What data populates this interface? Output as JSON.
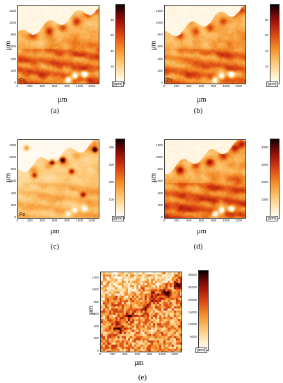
{
  "chart_data": [
    {
      "type": "heatmap",
      "panel": "(a)",
      "element": "Cu",
      "xlabel": "µm",
      "ylabel": "µm",
      "x_ticks": [
        "0",
        "200",
        "400",
        "600",
        "800",
        "1000",
        "1200"
      ],
      "y_ticks": [
        "0",
        "200",
        "400",
        "600",
        "800",
        "1000",
        "1200"
      ],
      "xlim": [
        0,
        1300
      ],
      "ylim": [
        0,
        1300
      ],
      "colorbar": {
        "ticks": [
          "20",
          "40",
          "60",
          "80"
        ],
        "unit": "[ppm]",
        "range": [
          0,
          100
        ]
      }
    },
    {
      "type": "heatmap",
      "panel": "(b)",
      "element": "Zn",
      "xlabel": "µm",
      "ylabel": "µm",
      "x_ticks": [
        "0",
        "200",
        "400",
        "600",
        "800",
        "1000",
        "1200"
      ],
      "y_ticks": [
        "0",
        "200",
        "400",
        "600",
        "800",
        "1000",
        "1200"
      ],
      "xlim": [
        0,
        1300
      ],
      "ylim": [
        0,
        1300
      ],
      "colorbar": {
        "ticks": [
          "20",
          "40",
          "60",
          "80"
        ],
        "unit": "[ppm]",
        "range": [
          0,
          100
        ]
      }
    },
    {
      "type": "heatmap",
      "panel": "(c)",
      "element": "Fe",
      "xlabel": "µm",
      "ylabel": "µm",
      "x_ticks": [
        "0",
        "200",
        "400",
        "600",
        "800",
        "1000",
        "1200"
      ],
      "y_ticks": [
        "0",
        "200",
        "400",
        "600",
        "800",
        "1000",
        "1200"
      ],
      "xlim": [
        0,
        1300
      ],
      "ylim": [
        0,
        1300
      ],
      "colorbar": {
        "ticks": [
          "100",
          "200",
          "300",
          "400"
        ],
        "unit": "[ppm]",
        "range": [
          0,
          450
        ]
      }
    },
    {
      "type": "heatmap",
      "panel": "(d)",
      "element": "",
      "xlabel": "µm",
      "ylabel": "µm",
      "x_ticks": [
        "0",
        "200",
        "400",
        "600",
        "800",
        "1000",
        "1200"
      ],
      "y_ticks": [
        "0",
        "200",
        "400",
        "600",
        "800",
        "1000",
        "1200"
      ],
      "xlim": [
        0,
        1300
      ],
      "ylim": [
        0,
        1300
      ],
      "colorbar": {
        "ticks": [
          "1000",
          "2000",
          "3000",
          "4000"
        ],
        "unit": "[ppm]",
        "range": [
          0,
          4500
        ]
      }
    },
    {
      "type": "heatmap",
      "panel": "(e)",
      "element": "",
      "xlabel": "µm",
      "ylabel": "µm",
      "x_ticks": [
        "0",
        "200",
        "400",
        "600",
        "800",
        "1000",
        "1200"
      ],
      "y_ticks": [
        "0",
        "200",
        "400",
        "600",
        "800",
        "1000",
        "1200"
      ],
      "xlim": [
        0,
        1300
      ],
      "ylim": [
        0,
        1300
      ],
      "colorbar": {
        "ticks": [
          "5000",
          "10000",
          "15000",
          "20000",
          "25000",
          "30000"
        ],
        "unit": "[ppm]",
        "range": [
          0,
          32000
        ]
      }
    }
  ]
}
